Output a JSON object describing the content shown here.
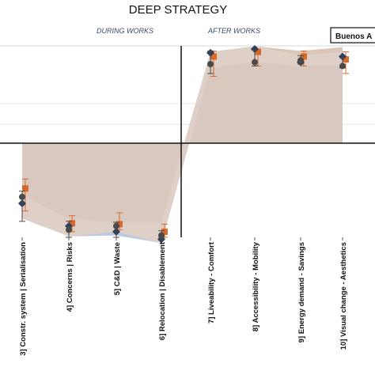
{
  "chart_data": {
    "type": "line",
    "title": "DEEP STRATEGY",
    "phases": [
      "DURING WORKS",
      "AFTER WORKS"
    ],
    "categories": [
      "3] Constr. system | Serialisation",
      "4] Concerns | Risks",
      "5] C&D | Waste",
      "6] Relocation | Disablement",
      "7] Liveability - Comfort",
      "8] Accessibility - Mobility",
      "9] Energy demand - Savings",
      "10] Visual change - Aesthetics"
    ],
    "ylim": [
      -1,
      1
    ],
    "grid": "horizontal",
    "legend": {
      "position": "top-right",
      "label": "Buenos A"
    },
    "colors": {
      "orange": "#d9692a",
      "blue": "#2e3f5c",
      "gray": "#4a4a4a",
      "orange_band": "#d6bfae",
      "blue_band": "#b9c4dc",
      "mid_band": "#c8b6ad"
    },
    "series": [
      {
        "color": "#d9692a",
        "marker": "square",
        "values": [
          -0.48,
          -0.85,
          -0.86,
          -0.94,
          0.92,
          0.97,
          0.92,
          0.89
        ],
        "low": [
          -0.72,
          -0.94,
          -0.92,
          -1.0,
          0.71,
          0.82,
          0.82,
          0.74
        ],
        "high": [
          -0.38,
          -0.77,
          -0.74,
          -0.86,
          0.98,
          1.0,
          0.98,
          0.97
        ]
      },
      {
        "color": "#2e3f5c",
        "marker": "diamond",
        "values": [
          -0.64,
          -0.88,
          -0.94,
          -1.02,
          0.96,
          1.0,
          0.86,
          0.92
        ],
        "low": [],
        "high": []
      },
      {
        "color": "#4a4a4a",
        "marker": "circle",
        "values": [
          -0.57,
          -0.92,
          -0.88,
          -0.98,
          0.84,
          0.86,
          0.88,
          0.82
        ],
        "low": [
          -0.83,
          -1.0,
          -1.0,
          -1.02,
          0.74,
          0.82,
          0.84,
          0.8
        ],
        "high": [
          -0.51,
          -0.83,
          -0.84,
          -0.93,
          0.98,
          0.99,
          0.93,
          0.91
        ]
      }
    ],
    "band_upper": [
      -0.55,
      -0.8,
      -0.84,
      -0.84,
      0.97,
      1.03,
      0.93,
      0.97
    ],
    "band_lower": [
      -0.8,
      -0.99,
      -0.94,
      -1.06,
      0.8,
      0.86,
      0.82,
      0.82
    ],
    "band_orange_top": [
      -0.55,
      -0.8,
      -0.84,
      -0.84,
      0.97,
      1.03,
      0.98,
      1.02
    ],
    "band_blue_bottom": [
      -0.8,
      -0.99,
      -0.98,
      -1.06,
      0.8,
      0.86,
      0.82,
      0.82
    ]
  }
}
